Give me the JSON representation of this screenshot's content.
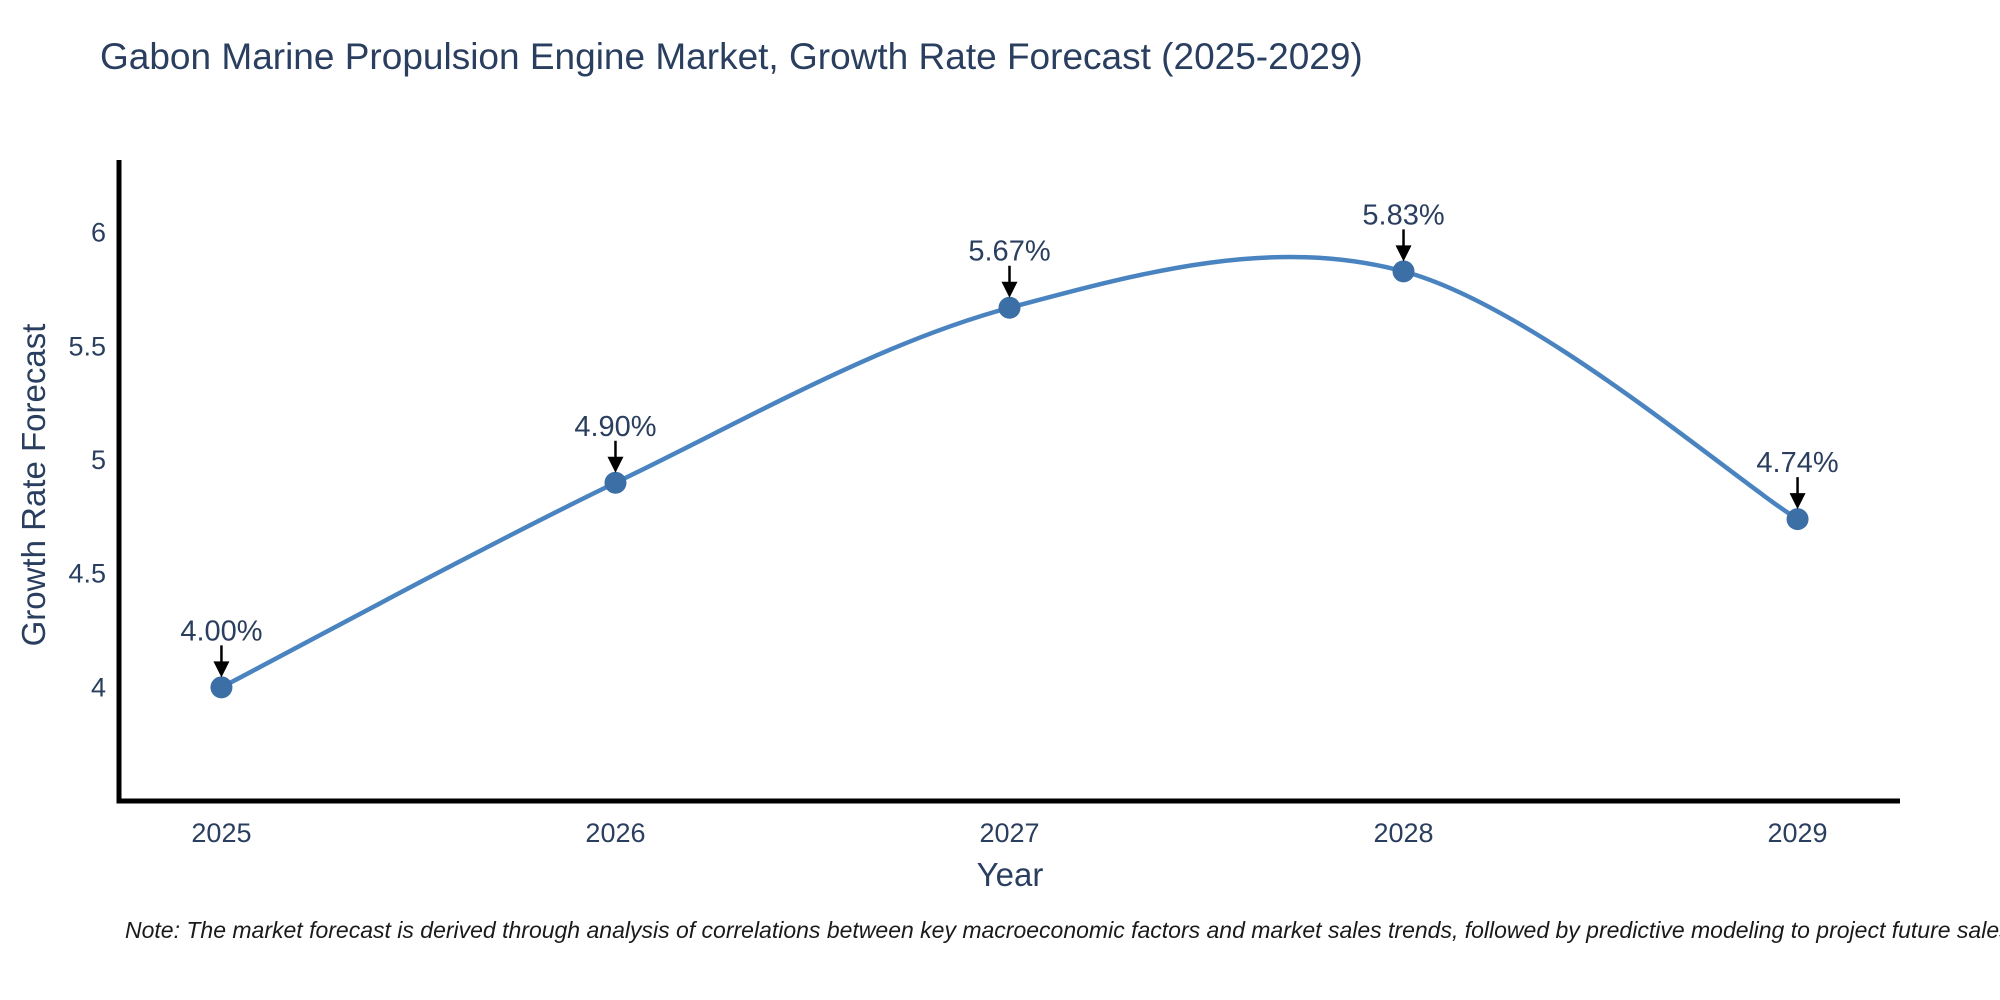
{
  "note": "Note: The market forecast is derived through analysis of correlations between key macroeconomic factors and market sales trends, followed by predictive modeling to project future sales",
  "chart_data": {
    "type": "line",
    "line_shape": "spline",
    "title": "Gabon Marine Propulsion Engine Market, Growth Rate Forecast (2025-2029)",
    "xlabel": "Year",
    "ylabel": "Growth Rate Forecast",
    "x": [
      2025,
      2026,
      2027,
      2028,
      2029
    ],
    "xticks": [
      "2025",
      "2026",
      "2027",
      "2028",
      "2029"
    ],
    "yticks": [
      "4",
      "4.5",
      "5",
      "5.5",
      "6"
    ],
    "series": [
      {
        "name": "Growth Rate Forecast",
        "values": [
          4.0,
          4.9,
          5.67,
          5.83,
          4.74
        ],
        "point_labels": [
          "4.00%",
          "4.90%",
          "5.67%",
          "5.83%",
          "4.74%"
        ]
      }
    ],
    "xlim": [
      2024.74,
      2029.26
    ],
    "ylim": [
      3.5,
      6.32
    ],
    "grid": false,
    "legend": "none",
    "annotations_have_arrows": true,
    "colors": {
      "line": "#4a84c0",
      "marker": "#3b6fa6",
      "axis_line": "#000000",
      "text": "#2a3f5f",
      "annotation_arrow": "#000000",
      "note_text": "#1a1a1a",
      "background": "#ffffff"
    }
  }
}
